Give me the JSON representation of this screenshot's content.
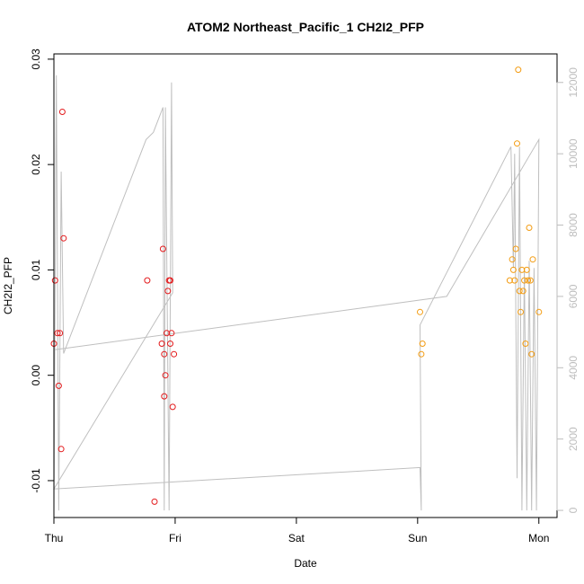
{
  "chart_data": {
    "type": "scatter",
    "title": "ATOM2 Northeast_Pacific_1 CH2I2_PFP",
    "xlabel": "Date",
    "ylabel": "CH2I2_PFP",
    "xlim": [
      0,
      4.15
    ],
    "ylim": [
      -0.0135,
      0.0305
    ],
    "x_ticks": [
      {
        "value": 0,
        "label": "Thu"
      },
      {
        "value": 1,
        "label": "Fri"
      },
      {
        "value": 2,
        "label": "Sat"
      },
      {
        "value": 3,
        "label": "Sun"
      },
      {
        "value": 4,
        "label": "Mon"
      }
    ],
    "y_ticks": [
      {
        "value": -0.01,
        "label": "-0.01"
      },
      {
        "value": 0.0,
        "label": "0.00"
      },
      {
        "value": 0.01,
        "label": "0.01"
      },
      {
        "value": 0.02,
        "label": "0.02"
      },
      {
        "value": 0.03,
        "label": "0.03"
      }
    ],
    "y2lim": [
      -200,
      12800
    ],
    "y2_ticks": [
      {
        "value": 0,
        "label": "0"
      },
      {
        "value": 2000,
        "label": "2000"
      },
      {
        "value": 4000,
        "label": "4000"
      },
      {
        "value": 6000,
        "label": "6000"
      },
      {
        "value": 8000,
        "label": "8000"
      },
      {
        "value": 10000,
        "label": "10000"
      },
      {
        "value": 12000,
        "label": "12000"
      }
    ],
    "grid": false,
    "colors": {
      "red": "#e31a1c",
      "orange": "#f39c12",
      "altitude_line": "#bfbfbf",
      "axis": "#000000",
      "right_axis": "#bdbdbd"
    },
    "series": [
      {
        "color": "#e31a1c",
        "points": [
          {
            "x": 0.0,
            "y": 0.003
          },
          {
            "x": 0.01,
            "y": 0.009
          },
          {
            "x": 0.03,
            "y": 0.004
          },
          {
            "x": 0.04,
            "y": -0.001
          },
          {
            "x": 0.05,
            "y": 0.004
          },
          {
            "x": 0.06,
            "y": -0.007
          },
          {
            "x": 0.07,
            "y": 0.025
          },
          {
            "x": 0.08,
            "y": 0.013
          },
          {
            "x": 0.77,
            "y": 0.009
          },
          {
            "x": 0.83,
            "y": -0.012
          },
          {
            "x": 0.89,
            "y": 0.003
          },
          {
            "x": 0.9,
            "y": 0.012
          },
          {
            "x": 0.91,
            "y": 0.002
          },
          {
            "x": 0.91,
            "y": -0.002
          },
          {
            "x": 0.92,
            "y": 0.0
          },
          {
            "x": 0.93,
            "y": 0.004
          },
          {
            "x": 0.94,
            "y": 0.008
          },
          {
            "x": 0.95,
            "y": 0.009
          },
          {
            "x": 0.96,
            "y": 0.009
          },
          {
            "x": 0.96,
            "y": 0.003
          },
          {
            "x": 0.97,
            "y": 0.004
          },
          {
            "x": 0.98,
            "y": -0.003
          },
          {
            "x": 0.99,
            "y": 0.002
          }
        ]
      },
      {
        "color": "#f39c12",
        "points": [
          {
            "x": 3.02,
            "y": 0.006
          },
          {
            "x": 3.03,
            "y": 0.002
          },
          {
            "x": 3.04,
            "y": 0.003
          },
          {
            "x": 3.76,
            "y": 0.009
          },
          {
            "x": 3.78,
            "y": 0.011
          },
          {
            "x": 3.79,
            "y": 0.01
          },
          {
            "x": 3.8,
            "y": 0.009
          },
          {
            "x": 3.81,
            "y": 0.012
          },
          {
            "x": 3.82,
            "y": 0.022
          },
          {
            "x": 3.83,
            "y": 0.029
          },
          {
            "x": 3.84,
            "y": 0.008
          },
          {
            "x": 3.85,
            "y": 0.006
          },
          {
            "x": 3.86,
            "y": 0.01
          },
          {
            "x": 3.87,
            "y": 0.008
          },
          {
            "x": 3.88,
            "y": 0.009
          },
          {
            "x": 3.89,
            "y": 0.003
          },
          {
            "x": 3.9,
            "y": 0.01
          },
          {
            "x": 3.91,
            "y": 0.009
          },
          {
            "x": 3.92,
            "y": 0.014
          },
          {
            "x": 3.93,
            "y": 0.009
          },
          {
            "x": 3.94,
            "y": 0.002
          },
          {
            "x": 3.95,
            "y": 0.011
          },
          {
            "x": 4.0,
            "y": 0.006
          }
        ]
      }
    ],
    "altitude_line": [
      {
        "x": 0.0,
        "y2": 0
      },
      {
        "x": 0.02,
        "y2": 12200
      },
      {
        "x": 0.04,
        "y2": 0
      },
      {
        "x": 0.06,
        "y2": 9500
      },
      {
        "x": 0.08,
        "y2": 4400
      },
      {
        "x": 0.76,
        "y2": 10400
      },
      {
        "x": 0.82,
        "y2": 10600
      },
      {
        "x": 0.9,
        "y2": 11300
      },
      {
        "x": 0.91,
        "y2": 0
      },
      {
        "x": 0.92,
        "y2": 11300
      },
      {
        "x": 0.95,
        "y2": 0
      },
      {
        "x": 0.97,
        "y2": 12000
      },
      {
        "x": 0.98,
        "y2": 6100
      },
      {
        "x": 0.0,
        "y2": 600
      },
      {
        "x": 3.02,
        "y2": 1200
      },
      {
        "x": 3.03,
        "y2": 0
      },
      {
        "x": 3.02,
        "y2": 5200
      },
      {
        "x": 3.77,
        "y2": 10200
      },
      {
        "x": 3.79,
        "y2": 6800
      },
      {
        "x": 3.8,
        "y2": 10000
      },
      {
        "x": 3.82,
        "y2": 900
      },
      {
        "x": 3.84,
        "y2": 10200
      },
      {
        "x": 3.86,
        "y2": 0
      },
      {
        "x": 3.88,
        "y2": 6800
      },
      {
        "x": 3.9,
        "y2": 0
      },
      {
        "x": 3.92,
        "y2": 7000
      },
      {
        "x": 3.94,
        "y2": 0
      },
      {
        "x": 3.96,
        "y2": 6800
      },
      {
        "x": 3.98,
        "y2": 0
      },
      {
        "x": 4.0,
        "y2": 10400
      },
      {
        "x": 3.24,
        "y2": 6000
      },
      {
        "x": 0.0,
        "y2": 4500
      }
    ]
  }
}
